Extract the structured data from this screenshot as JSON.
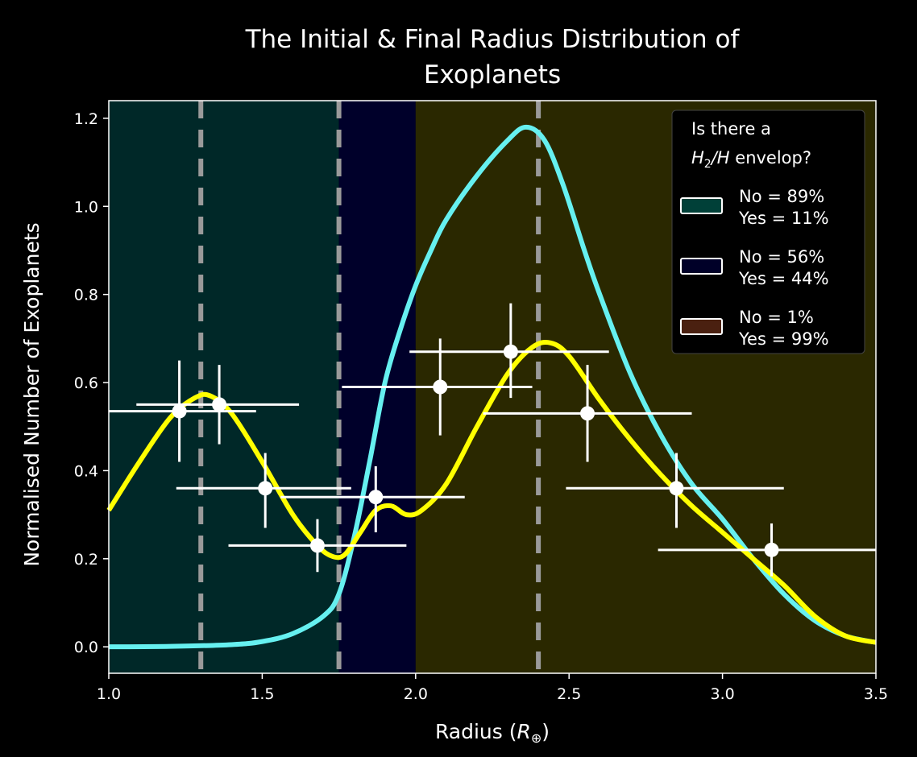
{
  "chart_data": {
    "type": "line",
    "title_lines": [
      "The Initial & Final Radius Distribution of",
      "Exoplanets"
    ],
    "xlabel": "Radius (R⊕)",
    "xlabel_main": "Radius (",
    "xlabel_symbol": "R",
    "xlabel_sub": "⊕",
    "xlabel_close": ")",
    "ylabel": "Normalised Number of Exoplanets",
    "xlim": [
      1.0,
      3.5
    ],
    "ylim": [
      -0.06,
      1.24
    ],
    "xticks": [
      1.0,
      1.5,
      2.0,
      2.5,
      3.0,
      3.5
    ],
    "xtick_labels": [
      "1.0",
      "1.5",
      "2.0",
      "2.5",
      "3.0",
      "3.5"
    ],
    "yticks": [
      0.0,
      0.2,
      0.4,
      0.6,
      0.8,
      1.0,
      1.2
    ],
    "ytick_labels": [
      "0.0",
      "0.2",
      "0.4",
      "0.6",
      "0.8",
      "1.0",
      "1.2"
    ],
    "grid": false,
    "background": "#000000",
    "regions": [
      {
        "x0": 1.0,
        "x1": 1.75,
        "color": "#002828"
      },
      {
        "x0": 1.75,
        "x1": 2.0,
        "color": "#00002a"
      },
      {
        "x0": 2.0,
        "x1": 3.5,
        "color": "#2a2800"
      }
    ],
    "vlines": {
      "x": [
        1.3,
        1.75,
        2.4
      ],
      "color": "#9a9a9a",
      "style": "dashed"
    },
    "series": [
      {
        "color": "#66f0f0",
        "x": [
          1.0,
          1.2,
          1.4,
          1.5,
          1.6,
          1.7,
          1.75,
          1.8,
          1.85,
          1.9,
          1.95,
          2.0,
          2.05,
          2.1,
          2.2,
          2.3,
          2.36,
          2.42,
          2.48,
          2.55,
          2.6,
          2.7,
          2.8,
          2.9,
          3.0,
          3.1,
          3.2,
          3.3,
          3.4,
          3.5
        ],
        "y": [
          0.0,
          0.001,
          0.005,
          0.012,
          0.03,
          0.07,
          0.12,
          0.25,
          0.42,
          0.6,
          0.72,
          0.82,
          0.9,
          0.97,
          1.07,
          1.15,
          1.18,
          1.15,
          1.05,
          0.9,
          0.8,
          0.62,
          0.48,
          0.37,
          0.29,
          0.2,
          0.12,
          0.06,
          0.025,
          0.01
        ]
      },
      {
        "color": "#ffff00",
        "x": [
          1.0,
          1.1,
          1.2,
          1.28,
          1.33,
          1.4,
          1.5,
          1.6,
          1.68,
          1.73,
          1.77,
          1.82,
          1.87,
          1.92,
          1.97,
          2.02,
          2.1,
          2.2,
          2.3,
          2.38,
          2.44,
          2.5,
          2.6,
          2.7,
          2.8,
          2.9,
          3.0,
          3.1,
          3.2,
          3.3,
          3.4,
          3.5
        ],
        "y": [
          0.31,
          0.42,
          0.52,
          0.565,
          0.57,
          0.53,
          0.42,
          0.3,
          0.23,
          0.205,
          0.21,
          0.26,
          0.31,
          0.32,
          0.3,
          0.31,
          0.37,
          0.5,
          0.62,
          0.68,
          0.69,
          0.66,
          0.56,
          0.47,
          0.39,
          0.32,
          0.26,
          0.2,
          0.14,
          0.07,
          0.025,
          0.01
        ]
      }
    ],
    "points": {
      "color": "#ffffff",
      "x": [
        1.23,
        1.36,
        1.51,
        1.68,
        1.87,
        2.08,
        2.31,
        2.56,
        2.85,
        3.16
      ],
      "y": [
        0.535,
        0.55,
        0.36,
        0.23,
        0.34,
        0.59,
        0.67,
        0.53,
        0.36,
        0.22
      ],
      "xerr_low": [
        1.0,
        1.09,
        1.22,
        1.39,
        1.56,
        1.76,
        1.98,
        2.22,
        2.49,
        2.79
      ],
      "xerr_high": [
        1.48,
        1.62,
        1.79,
        1.97,
        2.16,
        2.38,
        2.63,
        2.9,
        3.2,
        3.5
      ],
      "yerr_low": [
        0.42,
        0.46,
        0.27,
        0.17,
        0.26,
        0.48,
        0.565,
        0.42,
        0.27,
        0.16
      ],
      "yerr_high": [
        0.65,
        0.64,
        0.44,
        0.29,
        0.41,
        0.7,
        0.78,
        0.64,
        0.44,
        0.28
      ]
    },
    "legend": {
      "placement": "top-right",
      "title_line1": "Is there a",
      "title_math": "H",
      "title_sub": "2",
      "title_math2": "/H",
      "title_rest": " envelop?",
      "entries": [
        {
          "line1": "No = 89%",
          "line2": "Yes = 11%",
          "color": "#004038"
        },
        {
          "line1": "No = 56%",
          "line2": "Yes = 44%",
          "color": "#000028"
        },
        {
          "line1": "No = 1%",
          "line2": "Yes = 99%",
          "color": "#4a2010"
        }
      ]
    }
  }
}
